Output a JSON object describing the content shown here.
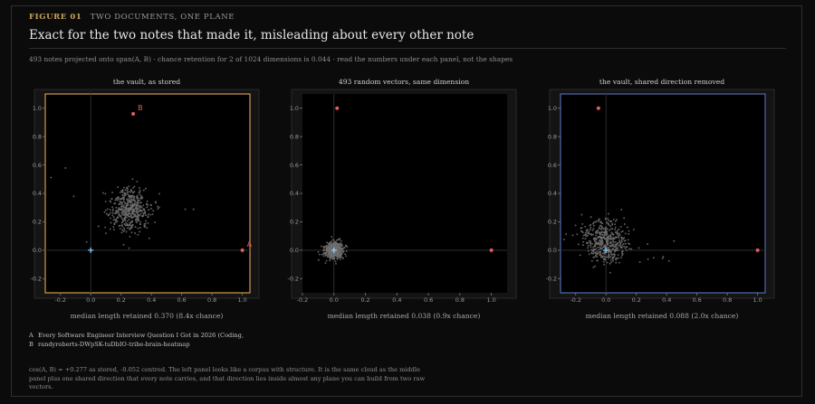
{
  "header": {
    "figure_number": "FIGURE 01",
    "figure_subtitle": "TWO DOCUMENTS, ONE PLANE",
    "title": "Exact for the two notes that made it, misleading about every other note",
    "subtitle": "493 notes projected onto span(A, B)  ·  chance retention for 2 of 1024 dimensions is 0.044  ·  read the numbers under each panel, not the shapes"
  },
  "colors": {
    "panel1_border": "#d19a4e",
    "panel3_border": "#4f68b0",
    "point_marker": "#e35c5c",
    "origin_marker": "#8fd0ff",
    "cloud": "#6e6e6e"
  },
  "chart_data": [
    {
      "type": "scatter",
      "title": "the vault, as stored",
      "caption": "median length retained  0.370   (8.4x chance)",
      "xlim": [
        -0.3,
        1.05
      ],
      "ylim": [
        -0.3,
        1.1
      ],
      "xticks": [
        "-0.2",
        "0.0",
        "0.2",
        "0.4",
        "0.6",
        "0.8",
        "1.0"
      ],
      "yticks": [
        "-0.2",
        "0.0",
        "0.2",
        "0.4",
        "0.6",
        "0.8",
        "1.0"
      ],
      "cloud": {
        "count": 493,
        "center": [
          0.25,
          0.29
        ],
        "spread": [
          0.065,
          0.075
        ],
        "tilt": -0.3
      },
      "points": [
        {
          "label": "A",
          "x": 1.0,
          "y": 0.0,
          "show_label": true
        },
        {
          "label": "B",
          "x": 0.28,
          "y": 0.96,
          "show_label": true
        }
      ],
      "origin": [
        0.0,
        0.0
      ]
    },
    {
      "type": "scatter",
      "title": "493 random vectors, same dimension",
      "caption": "median length retained  0.038   (0.9x chance)",
      "xlim": [
        -0.2,
        1.1
      ],
      "ylim": [
        -0.3,
        1.1
      ],
      "xticks": [
        "-0.2",
        "0.0",
        "0.2",
        "0.4",
        "0.6",
        "0.8",
        "1.0"
      ],
      "yticks": [
        "-0.2",
        "0.0",
        "0.2",
        "0.4",
        "0.6",
        "0.8",
        "1.0"
      ],
      "cloud": {
        "count": 493,
        "center": [
          0.0,
          0.0
        ],
        "spread": [
          0.03,
          0.03
        ],
        "tilt": 0
      },
      "points": [
        {
          "label": "A",
          "x": 1.0,
          "y": 0.0,
          "show_label": false
        },
        {
          "label": "B",
          "x": 0.02,
          "y": 1.0,
          "show_label": false
        }
      ],
      "origin": [
        0.0,
        0.0
      ]
    },
    {
      "type": "scatter",
      "title": "the vault, shared direction removed",
      "caption": "median length retained  0.088   (2.0x chance)",
      "xlim": [
        -0.3,
        1.05
      ],
      "ylim": [
        -0.3,
        1.1
      ],
      "xticks": [
        "-0.2",
        "0.0",
        "0.2",
        "0.4",
        "0.6",
        "0.8",
        "1.0"
      ],
      "yticks": [
        "-0.2",
        "0.0",
        "0.2",
        "0.4",
        "0.6",
        "0.8",
        "1.0"
      ],
      "cloud": {
        "count": 493,
        "center": [
          -0.01,
          0.06
        ],
        "spread": [
          0.075,
          0.075
        ],
        "tilt": -0.2
      },
      "points": [
        {
          "label": "A",
          "x": 1.0,
          "y": 0.0,
          "show_label": false
        },
        {
          "label": "B",
          "x": -0.05,
          "y": 1.0,
          "show_label": false
        }
      ],
      "origin": [
        0.0,
        0.0
      ]
    }
  ],
  "legend": {
    "a_key": "A",
    "a_text": "Every Software Engineer Interview Question I Got in 2026 (Coding,",
    "b_key": "B",
    "b_text": "randyroberts-DWpSK-tuDbIO-tribe-brain-heatmap"
  },
  "footnote": "cos(A, B) = +0.277 as stored, -0.052 centred. The left panel looks like a corpus with structure. It is the same cloud as the middle panel plus one shared direction that every note carries, and that direction lies inside almost any plane you can build from two raw vectors."
}
